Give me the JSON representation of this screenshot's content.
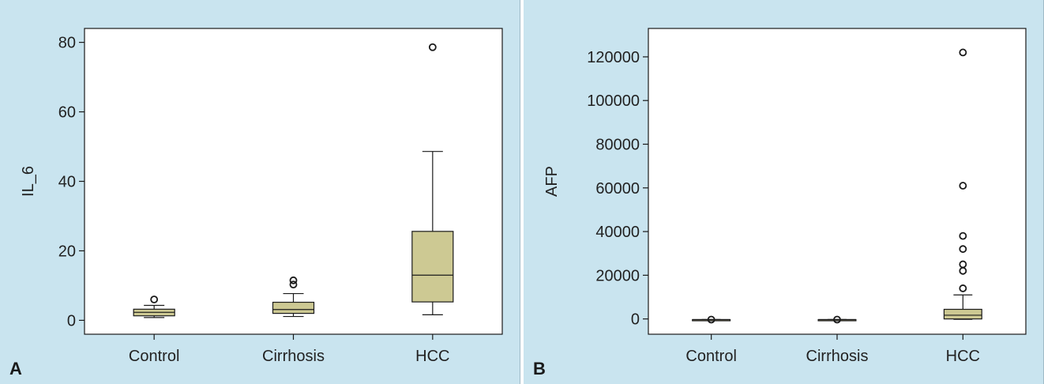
{
  "figure": {
    "panels": [
      {
        "letter": "A"
      },
      {
        "letter": "B"
      }
    ]
  },
  "colors": {
    "box_fill": "#cdc993",
    "plot_bg": "#ffffff",
    "panel_bg": "#c9e4ef",
    "stroke": "#1a1a1a"
  },
  "chart_data": [
    {
      "type": "boxplot",
      "ylabel": "IL_6",
      "xlabel": "",
      "categories": [
        "Control",
        "Cirrhosis",
        "HCC"
      ],
      "ylim": [
        -4,
        84
      ],
      "yticks": [
        0,
        20,
        40,
        60,
        80
      ],
      "grid": false,
      "boxes": [
        {
          "category": "Control",
          "min": 0.8,
          "q1": 1.3,
          "median": 2.3,
          "q3": 3.2,
          "max": 4.3,
          "outliers": [
            6.0
          ]
        },
        {
          "category": "Cirrhosis",
          "min": 1.1,
          "q1": 2.0,
          "median": 3.1,
          "q3": 5.2,
          "max": 7.7,
          "outliers": [
            10.3,
            11.5
          ]
        },
        {
          "category": "HCC",
          "min": 1.6,
          "q1": 5.3,
          "median": 13.0,
          "q3": 25.6,
          "max": 48.6,
          "outliers": [
            78.6
          ]
        }
      ]
    },
    {
      "type": "boxplot",
      "ylabel": "AFP",
      "xlabel": "",
      "categories": [
        "Control",
        "Cirrhosis",
        "HCC"
      ],
      "ylim": [
        -7000,
        133000
      ],
      "yticks": [
        0,
        20000,
        40000,
        60000,
        80000,
        100000,
        120000
      ],
      "grid": false,
      "boxes": [
        {
          "category": "Control",
          "min": -300,
          "q1": -300,
          "median": -300,
          "q3": -300,
          "max": -300,
          "outliers": [
            -300
          ]
        },
        {
          "category": "Cirrhosis",
          "min": -300,
          "q1": -300,
          "median": -300,
          "q3": -300,
          "max": -300,
          "outliers": [
            -300
          ]
        },
        {
          "category": "HCC",
          "min": -200,
          "q1": 0,
          "median": 1700,
          "q3": 4400,
          "max": 11000,
          "outliers": [
            14000,
            22000,
            25000,
            32000,
            38000,
            61000,
            122000
          ]
        }
      ]
    }
  ]
}
